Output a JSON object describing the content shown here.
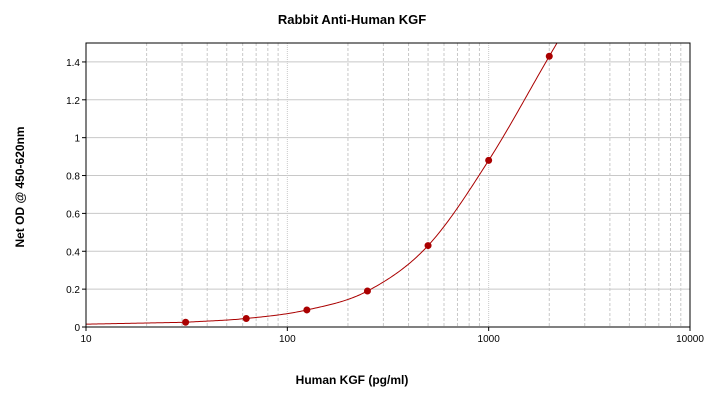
{
  "chart_data": {
    "type": "scatter",
    "title": "Rabbit Anti-Human KGF",
    "xlabel": "Human KGF (pg/ml)",
    "ylabel": "Net OD @ 450-620nm",
    "x_scale": "log",
    "xlim": [
      10,
      10000
    ],
    "ylim": [
      0,
      1.5
    ],
    "x_ticks": [
      "10",
      "100",
      "1000",
      "10000"
    ],
    "y_ticks": [
      "0",
      "0.2",
      "0.4",
      "0.6",
      "0.8",
      "1",
      "1.2",
      "1.4"
    ],
    "grid": true,
    "series": [
      {
        "x": [
          31.25,
          62.5,
          125,
          250,
          500,
          1000,
          2000
        ],
        "y": [
          0.025,
          0.045,
          0.09,
          0.19,
          0.43,
          0.88,
          1.43
        ]
      }
    ],
    "fit_curve": true,
    "colors": {
      "point": "#aa0000",
      "curve": "#aa0000",
      "grid": "#c8c8c8",
      "frame": "#000000"
    }
  }
}
